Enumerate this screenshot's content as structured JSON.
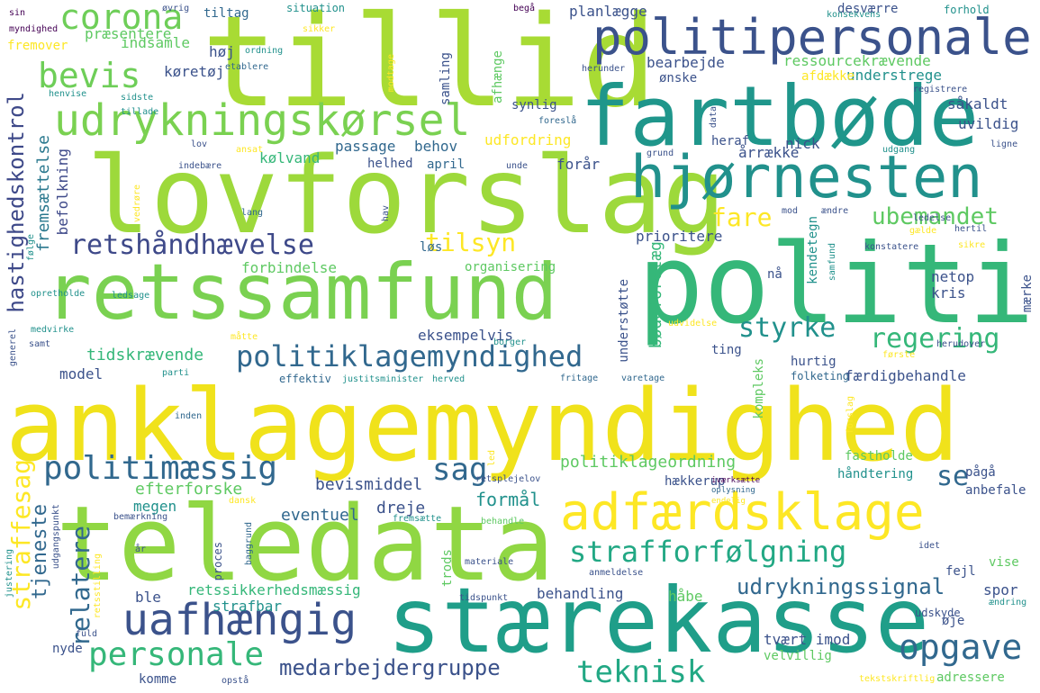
{
  "colors": {
    "background": "#ffffff",
    "palette": [
      "#440154",
      "#3b528b",
      "#21918c",
      "#5ec962",
      "#fde725"
    ]
  },
  "words": [
    {
      "text": "anklagemyndighed",
      "color": "#f0e21b"
    },
    {
      "text": "politi",
      "color": "#35b779"
    },
    {
      "text": "tillid",
      "color": "#a8db34"
    },
    {
      "text": "teledata",
      "color": "#90d743"
    },
    {
      "text": "lovforslag",
      "color": "#9dd93b"
    },
    {
      "text": "stærekasse",
      "color": "#1f9e89"
    },
    {
      "text": "retssamfund",
      "color": "#7ad151"
    },
    {
      "text": "fartbøde",
      "color": "#1f968b"
    },
    {
      "text": "hjørnesten",
      "color": "#21918c"
    },
    {
      "text": "politipersonale",
      "color": "#3b528b"
    },
    {
      "text": "adfærdsklage",
      "color": "#fde725"
    },
    {
      "text": "udrykningskørsel",
      "color": "#7ad151"
    },
    {
      "text": "uafhængig",
      "color": "#3b528b"
    },
    {
      "text": "corona",
      "color": "#6ece58"
    },
    {
      "text": "bevis",
      "color": "#6ece58"
    },
    {
      "text": "retshåndhævelse",
      "color": "#3e4989"
    },
    {
      "text": "politiklagemyndighed",
      "color": "#31688e"
    },
    {
      "text": "politimæssig",
      "color": "#31688e"
    },
    {
      "text": "strafforfølgning",
      "color": "#22a884"
    },
    {
      "text": "personale",
      "color": "#35b779"
    },
    {
      "text": "opgave",
      "color": "#31688e"
    },
    {
      "text": "teknisk",
      "color": "#22a884"
    },
    {
      "text": "medarbejdergruppe",
      "color": "#3b528b"
    },
    {
      "text": "udrykningssignal",
      "color": "#31688e"
    },
    {
      "text": "regering",
      "color": "#35b779"
    },
    {
      "text": "styrke",
      "color": "#21918c"
    },
    {
      "text": "tilsyn",
      "color": "#fde725"
    },
    {
      "text": "fare",
      "color": "#fde725"
    },
    {
      "text": "ubemandet",
      "color": "#5ec962"
    },
    {
      "text": "sag",
      "color": "#31688e"
    },
    {
      "text": "se",
      "color": "#31688e"
    },
    {
      "text": "relatere",
      "color": "#31688e"
    },
    {
      "text": "straffesag",
      "color": "#fde725"
    },
    {
      "text": "hastighedskontrol",
      "color": "#3e4989"
    },
    {
      "text": "tjeneste",
      "color": "#31688e"
    },
    {
      "text": "fremsættelse",
      "color": "#2a788e"
    },
    {
      "text": "befolkning",
      "color": "#3e4989"
    },
    {
      "text": "tidskrævende",
      "color": "#35b779"
    },
    {
      "text": "model",
      "color": "#3b528b"
    },
    {
      "text": "politiklageordning",
      "color": "#5ec962"
    },
    {
      "text": "efterforske",
      "color": "#5ec962"
    },
    {
      "text": "bevismiddel",
      "color": "#3b528b"
    },
    {
      "text": "formål",
      "color": "#21918c"
    },
    {
      "text": "megen",
      "color": "#21918c"
    },
    {
      "text": "eventuel",
      "color": "#31688e"
    },
    {
      "text": "dreje",
      "color": "#3b528b"
    },
    {
      "text": "retssikkerhedsmæssig",
      "color": "#35b779"
    },
    {
      "text": "strafbar",
      "color": "#21918c"
    },
    {
      "text": "ble",
      "color": "#3b528b"
    },
    {
      "text": "behandling",
      "color": "#3b528b"
    },
    {
      "text": "håbe",
      "color": "#5ec962"
    },
    {
      "text": "spor",
      "color": "#3b528b"
    },
    {
      "text": "tvært imod",
      "color": "#3b528b"
    },
    {
      "text": "velvillig",
      "color": "#5ec962"
    },
    {
      "text": "adressere",
      "color": "#5ec962"
    },
    {
      "text": "nyde",
      "color": "#3b528b"
    },
    {
      "text": "komme",
      "color": "#3b528b"
    },
    {
      "text": "passage",
      "color": "#31688e"
    },
    {
      "text": "behov",
      "color": "#31688e"
    },
    {
      "text": "udfordring",
      "color": "#fde725"
    },
    {
      "text": "kølvand",
      "color": "#35b779"
    },
    {
      "text": "helhed",
      "color": "#3b528b"
    },
    {
      "text": "april",
      "color": "#31688e"
    },
    {
      "text": "forår",
      "color": "#3b528b"
    },
    {
      "text": "prioritere",
      "color": "#3b528b"
    },
    {
      "text": "løs",
      "color": "#31688e"
    },
    {
      "text": "forbindelse",
      "color": "#5ec962"
    },
    {
      "text": "organisering",
      "color": "#5ec962"
    },
    {
      "text": "eksempelvis",
      "color": "#3b528b"
    },
    {
      "text": "effektiv",
      "color": "#31688e"
    },
    {
      "text": "justitsminister",
      "color": "#21918c"
    },
    {
      "text": "herved",
      "color": "#21918c"
    },
    {
      "text": "fritage",
      "color": "#31688e"
    },
    {
      "text": "varetage",
      "color": "#31688e"
    },
    {
      "text": "folketing",
      "color": "#31688e"
    },
    {
      "text": "hurtig",
      "color": "#3b528b"
    },
    {
      "text": "ting",
      "color": "#3b528b"
    },
    {
      "text": "færdigbehandle",
      "color": "#3b528b"
    },
    {
      "text": "netop",
      "color": "#3b528b"
    },
    {
      "text": "kris",
      "color": "#3b528b"
    },
    {
      "text": "nå",
      "color": "#3b528b"
    },
    {
      "text": "fastholde",
      "color": "#5ec962"
    },
    {
      "text": "håndtering",
      "color": "#21918c"
    },
    {
      "text": "pågå",
      "color": "#3b528b"
    },
    {
      "text": "anbefale",
      "color": "#3b528b"
    },
    {
      "text": "hækkerup",
      "color": "#3b528b"
    },
    {
      "text": "iværksætte",
      "color": "#440154"
    },
    {
      "text": "oplysning",
      "color": "#31688e"
    },
    {
      "text": "endelig",
      "color": "#fde725"
    },
    {
      "text": "fejl",
      "color": "#3b528b"
    },
    {
      "text": "vise",
      "color": "#5ec962"
    },
    {
      "text": "øje",
      "color": "#3b528b"
    },
    {
      "text": "udskyde",
      "color": "#3b528b"
    },
    {
      "text": "ændring",
      "color": "#21918c"
    },
    {
      "text": "idet",
      "color": "#3b528b"
    },
    {
      "text": "anmeldelse",
      "color": "#3b528b"
    },
    {
      "text": "tekstskriftlig",
      "color": "#fde725"
    },
    {
      "text": "udgang",
      "color": "#21918c"
    },
    {
      "text": "grund",
      "color": "#3b528b"
    },
    {
      "text": "ligne",
      "color": "#3b528b"
    },
    {
      "text": "årrække",
      "color": "#3b528b"
    },
    {
      "text": "heraf",
      "color": "#3b528b"
    },
    {
      "text": "nick",
      "color": "#3b528b"
    },
    {
      "text": "uvildig",
      "color": "#3b528b"
    },
    {
      "text": "såkaldt",
      "color": "#3b528b"
    },
    {
      "text": "understrege",
      "color": "#21918c"
    },
    {
      "text": "afdække",
      "color": "#fde725"
    },
    {
      "text": "registrere",
      "color": "#3b528b"
    },
    {
      "text": "ressourcekrævende",
      "color": "#5ec962"
    },
    {
      "text": "bearbejde",
      "color": "#3b528b"
    },
    {
      "text": "ønske",
      "color": "#3b528b"
    },
    {
      "text": "desværre",
      "color": "#3b528b"
    },
    {
      "text": "forhold",
      "color": "#21918c"
    },
    {
      "text": "konsekvens",
      "color": "#21918c"
    },
    {
      "text": "planlægge",
      "color": "#3b528b"
    },
    {
      "text": "begå",
      "color": "#440154"
    },
    {
      "text": "herunder",
      "color": "#3b528b"
    },
    {
      "text": "synlig",
      "color": "#3b528b"
    },
    {
      "text": "foreslå",
      "color": "#31688e"
    },
    {
      "text": "afhænge",
      "color": "#5ec962"
    },
    {
      "text": "samling",
      "color": "#3b528b"
    },
    {
      "text": "modtage",
      "color": "#fde725"
    },
    {
      "text": "situation",
      "color": "#21918c"
    },
    {
      "text": "sikker",
      "color": "#fde725"
    },
    {
      "text": "ordning",
      "color": "#21918c"
    },
    {
      "text": "etablere",
      "color": "#31688e"
    },
    {
      "text": "køretøj",
      "color": "#3b528b"
    },
    {
      "text": "høj",
      "color": "#3b528b"
    },
    {
      "text": "indsamle",
      "color": "#5ec962"
    },
    {
      "text": "præsentere",
      "color": "#5ec962"
    },
    {
      "text": "tiltag",
      "color": "#31688e"
    },
    {
      "text": "øvrig",
      "color": "#3b528b"
    },
    {
      "text": "sin",
      "color": "#440154"
    },
    {
      "text": "myndighed",
      "color": "#440154"
    },
    {
      "text": "fremover",
      "color": "#fde725"
    },
    {
      "text": "henvise",
      "color": "#21918c"
    },
    {
      "text": "sidste",
      "color": "#21918c"
    },
    {
      "text": "tillade",
      "color": "#21918c"
    },
    {
      "text": "lov",
      "color": "#3b528b"
    },
    {
      "text": "ansat",
      "color": "#fde725"
    },
    {
      "text": "indebære",
      "color": "#3b528b"
    },
    {
      "text": "unde",
      "color": "#3b528b"
    },
    {
      "text": "vedrøre",
      "color": "#fde725"
    },
    {
      "text": "lang",
      "color": "#31688e"
    },
    {
      "text": "hav",
      "color": "#3b528b"
    },
    {
      "text": "følge",
      "color": "#21918c"
    },
    {
      "text": "opretholde",
      "color": "#21918c"
    },
    {
      "text": "ledsage",
      "color": "#21918c"
    },
    {
      "text": "medvirke",
      "color": "#21918c"
    },
    {
      "text": "måtte",
      "color": "#fde725"
    },
    {
      "text": "generel",
      "color": "#3b528b"
    },
    {
      "text": "samt",
      "color": "#3b528b"
    },
    {
      "text": "borger",
      "color": "#21918c"
    },
    {
      "text": "parti",
      "color": "#21918c"
    },
    {
      "text": "inden",
      "color": "#31688e"
    },
    {
      "text": "led",
      "color": "#fde725"
    },
    {
      "text": "retsplejelov",
      "color": "#3b528b"
    },
    {
      "text": "dansk",
      "color": "#fde725"
    },
    {
      "text": "bemærkning",
      "color": "#3b528b"
    },
    {
      "text": "fremsætte",
      "color": "#21918c"
    },
    {
      "text": "behandle",
      "color": "#5ec962"
    },
    {
      "text": "år",
      "color": "#3b528b"
    },
    {
      "text": "baggrund",
      "color": "#31688e"
    },
    {
      "text": "proces",
      "color": "#3b528b"
    },
    {
      "text": "materiale",
      "color": "#3b528b"
    },
    {
      "text": "trods",
      "color": "#5ec962"
    },
    {
      "text": "tidspunkt",
      "color": "#3b528b"
    },
    {
      "text": "retsstilling",
      "color": "#fde725"
    },
    {
      "text": "udgangspunkt",
      "color": "#3b528b"
    },
    {
      "text": "justering",
      "color": "#21918c"
    },
    {
      "text": "fuld",
      "color": "#3b528b"
    },
    {
      "text": "opstå",
      "color": "#3b528b"
    },
    {
      "text": "understøtte",
      "color": "#3b528b"
    },
    {
      "text": "bødeforelæg",
      "color": "#35b779"
    },
    {
      "text": "kompleks",
      "color": "#5ec962"
    },
    {
      "text": "kendetegn",
      "color": "#21918c"
    },
    {
      "text": "samfund",
      "color": "#21918c"
    },
    {
      "text": "udvidelse",
      "color": "#fde725"
    },
    {
      "text": "mærke",
      "color": "#3b528b"
    },
    {
      "text": "konstatere",
      "color": "#3b528b"
    },
    {
      "text": "gælde",
      "color": "#fde725"
    },
    {
      "text": "sikre",
      "color": "#fde725"
    },
    {
      "text": "ledelse",
      "color": "#3b528b"
    },
    {
      "text": "hertil",
      "color": "#3b528b"
    },
    {
      "text": "mod",
      "color": "#3b528b"
    },
    {
      "text": "ændre",
      "color": "#3b528b"
    },
    {
      "text": "første",
      "color": "#fde725"
    },
    {
      "text": "herudover",
      "color": "#3b528b"
    },
    {
      "text": "data",
      "color": "#3b528b"
    },
    {
      "text": "forslag",
      "color": "#fde725"
    }
  ]
}
